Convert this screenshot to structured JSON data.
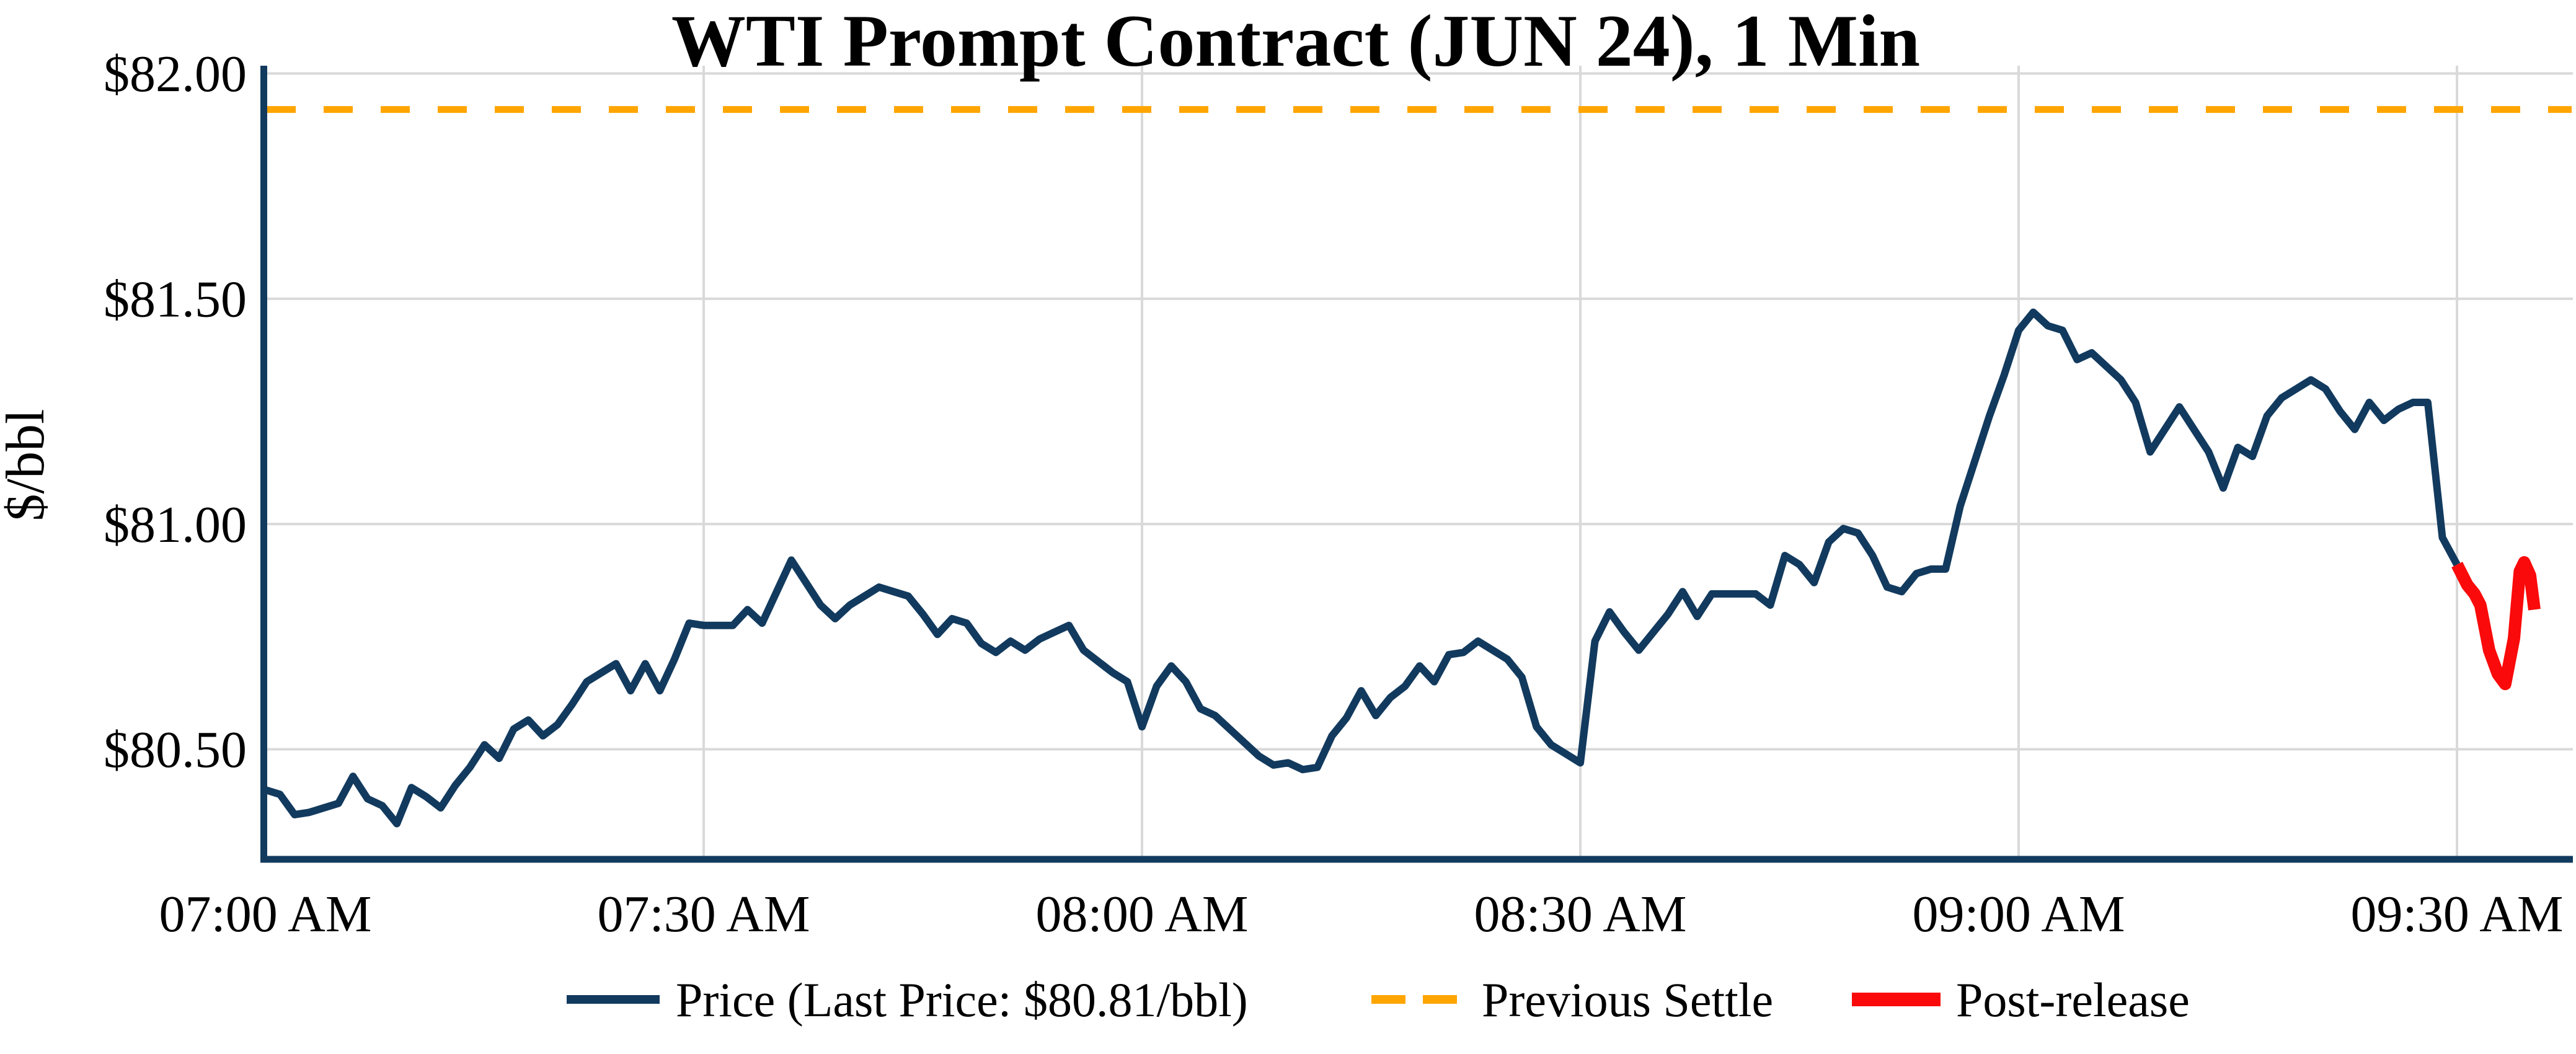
{
  "title": "WTI Prompt Contract (JUN 24), 1 Min",
  "y_axis": {
    "label": "$/bbl",
    "ticks": [
      {
        "label": "$82.00",
        "value": 82.0
      },
      {
        "label": "$81.50",
        "value": 81.5
      },
      {
        "label": "$81.00",
        "value": 81.0
      },
      {
        "label": "$80.50",
        "value": 80.5
      }
    ]
  },
  "x_axis": {
    "ticks": [
      {
        "label": "07:00 AM",
        "minute": 0
      },
      {
        "label": "07:30 AM",
        "minute": 30
      },
      {
        "label": "08:00 AM",
        "minute": 60
      },
      {
        "label": "08:30 AM",
        "minute": 90
      },
      {
        "label": "09:00 AM",
        "minute": 120
      },
      {
        "label": "09:30 AM",
        "minute": 150
      }
    ]
  },
  "legend": {
    "items": [
      {
        "label": "Price (Last Price: $80.81/bbl)",
        "series": "price"
      },
      {
        "label": "Previous Settle",
        "series": "previous-settle"
      },
      {
        "label": "Post-release",
        "series": "post-release"
      }
    ]
  },
  "colors": {
    "price": "#123A5E",
    "previous_settle": "#FFA500",
    "post_release": "#FA0A0A",
    "grid": "#D9D9D9",
    "axis": "#123A5E",
    "text": "#000000",
    "background": "#FFFFFF"
  },
  "last_price": "$80.81/bbl",
  "previous_settle_price": "$81.92",
  "chart_data": {
    "type": "line",
    "title": "WTI Prompt Contract (JUN 24), 1 Min",
    "xlabel": "",
    "ylabel": "$/bbl",
    "x_unit": "minutes after 07:00 AM",
    "xlim": [
      0,
      157
    ],
    "ylim": [
      80.27,
      82.08
    ],
    "grid": true,
    "legend_position": "bottom-center",
    "y_ticks": [
      80.5,
      81.0,
      81.5,
      82.0
    ],
    "x_tick_minutes": [
      0,
      30,
      60,
      90,
      120,
      150
    ],
    "x_tick_labels": [
      "07:00 AM",
      "07:30 AM",
      "08:00 AM",
      "08:30 AM",
      "09:00 AM",
      "09:30 AM"
    ],
    "previous_settle": 81.92,
    "series": [
      {
        "name": "Price",
        "color": "#123A5E",
        "style": "solid",
        "line_width": 12,
        "x_start_minute": 0,
        "x_step_minutes": 1,
        "values": [
          80.41,
          80.4,
          80.355,
          80.36,
          80.37,
          80.38,
          80.44,
          80.39,
          80.375,
          80.335,
          80.415,
          80.395,
          80.37,
          80.42,
          80.46,
          80.51,
          80.48,
          80.545,
          80.565,
          80.53,
          80.555,
          80.6,
          80.65,
          80.67,
          80.69,
          80.63,
          80.69,
          80.63,
          80.7,
          80.78,
          80.775,
          80.775,
          80.775,
          80.81,
          80.78,
          80.85,
          80.92,
          80.87,
          80.82,
          80.79,
          80.82,
          80.84,
          80.86,
          80.85,
          80.84,
          80.8,
          80.755,
          80.79,
          80.78,
          80.735,
          80.715,
          80.74,
          80.72,
          80.745,
          80.76,
          80.775,
          80.72,
          80.695,
          80.67,
          80.65,
          80.55,
          80.64,
          80.685,
          80.65,
          80.59,
          80.575,
          80.545,
          80.515,
          80.485,
          80.465,
          80.47,
          80.455,
          80.46,
          80.53,
          80.57,
          80.63,
          80.575,
          80.615,
          80.64,
          80.685,
          80.65,
          80.71,
          80.715,
          80.74,
          80.72,
          80.7,
          80.66,
          80.55,
          80.51,
          80.49,
          80.47,
          80.74,
          80.805,
          80.76,
          80.72,
          80.76,
          80.8,
          80.85,
          80.795,
          80.845,
          80.845,
          80.845,
          80.845,
          80.82,
          80.93,
          80.91,
          80.87,
          80.96,
          80.99,
          80.98,
          80.93,
          80.86,
          80.85,
          80.89,
          80.9,
          80.9,
          81.04,
          81.14,
          81.24,
          81.33,
          81.43,
          81.47,
          81.44,
          81.43,
          81.365,
          81.38,
          81.35,
          81.32,
          81.27,
          81.16,
          81.21,
          81.26,
          81.21,
          81.16,
          81.08,
          81.17,
          81.15,
          81.24,
          81.28,
          81.3,
          81.32,
          81.3,
          81.25,
          81.21,
          81.27,
          81.23,
          81.255,
          81.27,
          81.27,
          80.97,
          80.91
        ]
      },
      {
        "name": "Post-release",
        "color": "#FA0A0A",
        "style": "solid",
        "line_width": 20,
        "points": [
          [
            150.0,
            80.91
          ],
          [
            150.7,
            80.865
          ],
          [
            151.2,
            80.845
          ],
          [
            151.6,
            80.82
          ],
          [
            152.2,
            80.72
          ],
          [
            152.8,
            80.667
          ],
          [
            153.3,
            80.645
          ],
          [
            153.9,
            80.746
          ],
          [
            154.3,
            80.895
          ],
          [
            154.6,
            80.915
          ],
          [
            155.0,
            80.886
          ],
          [
            155.3,
            80.81
          ]
        ]
      },
      {
        "name": "Previous Settle",
        "color": "#FFA500",
        "style": "dashed",
        "line_width": 11,
        "value": 81.92
      }
    ]
  }
}
